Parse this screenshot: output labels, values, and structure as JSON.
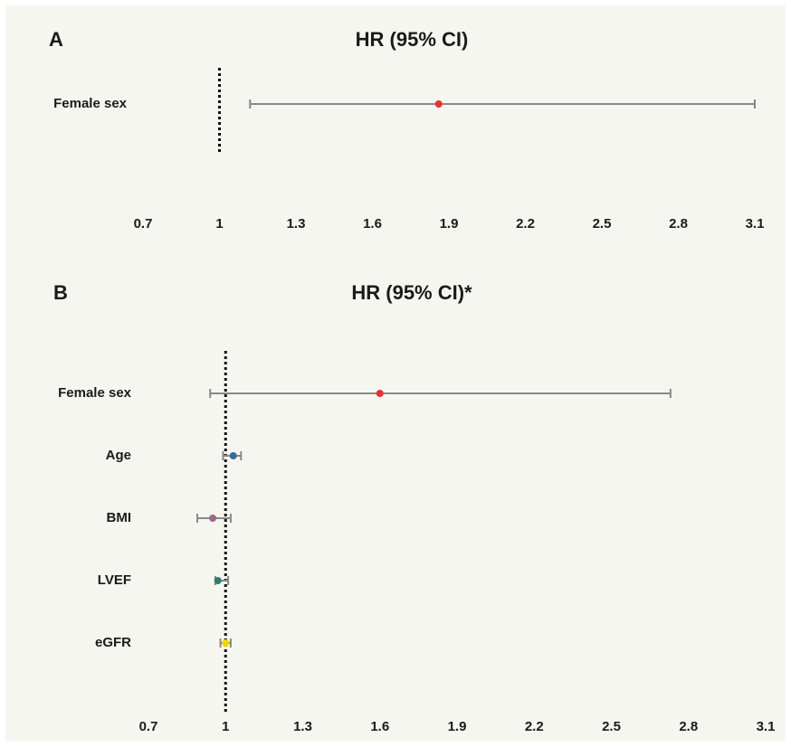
{
  "chart_data": [
    {
      "type": "forest",
      "panel": "A",
      "title": "HR (95% CI)",
      "categories": [
        "Female sex"
      ],
      "values": [
        1.86
      ],
      "lower": [
        1.12
      ],
      "upper": [
        3.1
      ],
      "colors": [
        "#e8312f"
      ],
      "whisker_color": "#8c8787",
      "reference_line": 1,
      "xlim": [
        0.7,
        3.1
      ],
      "xticks": [
        0.7,
        1,
        1.3,
        1.6,
        1.9,
        2.2,
        2.5,
        2.8,
        3.1
      ]
    },
    {
      "type": "forest",
      "panel": "B",
      "title": "HR (95% CI)*",
      "categories": [
        "Female sex",
        "Age",
        "BMI",
        "LVEF",
        "eGFR"
      ],
      "values": [
        1.6,
        1.03,
        0.95,
        0.97,
        1.0
      ],
      "lower": [
        0.94,
        0.99,
        0.89,
        0.96,
        0.98
      ],
      "upper": [
        2.73,
        1.06,
        1.02,
        1.01,
        1.02
      ],
      "colors": [
        "#e8312f",
        "#3b6a9a",
        "#a0668c",
        "#2e7d6e",
        "#f2d600"
      ],
      "whisker_color": "#8c8787",
      "reference_line": 1,
      "xlim": [
        0.7,
        3.1
      ],
      "xticks": [
        0.7,
        1,
        1.3,
        1.6,
        1.9,
        2.2,
        2.5,
        2.8,
        3.1
      ]
    }
  ]
}
